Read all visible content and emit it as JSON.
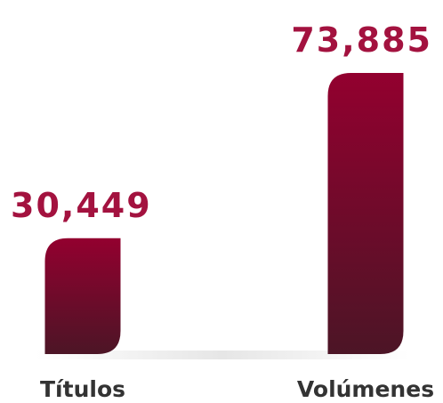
{
  "chart_data": {
    "type": "bar",
    "categories": [
      "Títulos",
      "Volúmenes"
    ],
    "values": [
      30449,
      73885
    ],
    "data_labels": [
      "30,449",
      "73,885"
    ],
    "title": "",
    "xlabel": "",
    "ylabel": "",
    "ylim": [
      0,
      73885
    ],
    "grid": false,
    "legend": "none"
  },
  "colors": {
    "bar_top": "#93002f",
    "bar_bottom": "#4c1526",
    "value_label": "#a3123f",
    "category_label": "#333333",
    "baseline_shadow": "#e6e6e6"
  }
}
